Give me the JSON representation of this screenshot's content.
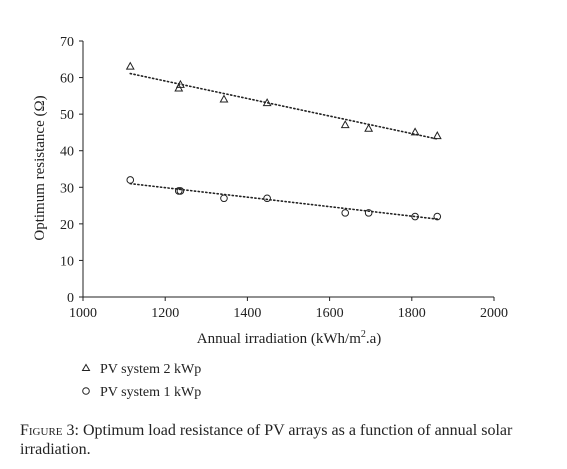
{
  "chart_data": {
    "type": "scatter",
    "title": "",
    "xlabel": "Annual irradiation (kWh/m",
    "xlabel_sup": "2",
    "xlabel_suffix": ".a)",
    "ylabel": "Optimum resistance (Ω)",
    "xlim": [
      1000,
      2000
    ],
    "ylim": [
      0,
      70
    ],
    "x_ticks": [
      "1000",
      "1200",
      "1400",
      "1600",
      "1800",
      "2000"
    ],
    "y_ticks": [
      "0",
      "10",
      "20",
      "30",
      "40",
      "50",
      "60",
      "70"
    ],
    "grid": false,
    "legend_position": "bottom-left",
    "series": [
      {
        "name": "PV system 2 kWp",
        "marker": "triangle",
        "x": [
          1115,
          1233,
          1237,
          1343,
          1448,
          1638,
          1695,
          1808,
          1862
        ],
        "y": [
          63,
          57,
          58,
          54,
          53,
          47,
          46,
          45,
          44
        ],
        "trendline": {
          "type": "linear",
          "x": [
            1115,
            1862
          ],
          "y": [
            61.1,
            43.2
          ]
        }
      },
      {
        "name": "PV system 1 kWp",
        "marker": "circle",
        "x": [
          1115,
          1233,
          1237,
          1343,
          1448,
          1638,
          1695,
          1808,
          1862
        ],
        "y": [
          32,
          29,
          29,
          27,
          27,
          23,
          23,
          22,
          22
        ],
        "trendline": {
          "type": "linear",
          "x": [
            1115,
            1862
          ],
          "y": [
            31.0,
            21.3
          ]
        }
      }
    ]
  },
  "caption": {
    "label": "Figure 3:",
    "text": " Optimum load resistance of PV arrays as a function of annual solar irradiation."
  }
}
